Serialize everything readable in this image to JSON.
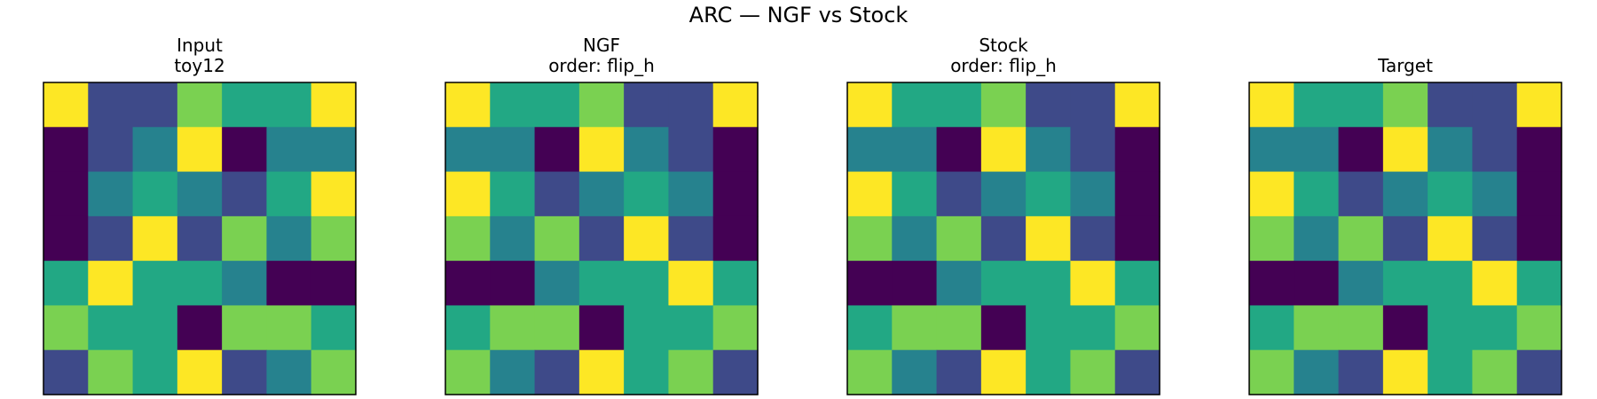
{
  "figure": {
    "title": "ARC — NGF vs Stock"
  },
  "palette": {
    "0": "#440154",
    "1": "#3e4a89",
    "2": "#26828e",
    "3": "#22a884",
    "4": "#7ad151",
    "5": "#fde725"
  },
  "chart_data": [
    {
      "type": "heatmap",
      "title": [
        "Input",
        "toy12"
      ],
      "grid": [
        [
          5,
          1,
          1,
          4,
          3,
          3,
          5
        ],
        [
          0,
          1,
          2,
          5,
          0,
          2,
          2
        ],
        [
          0,
          2,
          3,
          2,
          1,
          3,
          5
        ],
        [
          0,
          1,
          5,
          1,
          4,
          2,
          4
        ],
        [
          3,
          5,
          3,
          3,
          2,
          0,
          0
        ],
        [
          4,
          3,
          3,
          0,
          4,
          4,
          3
        ],
        [
          1,
          4,
          3,
          5,
          1,
          2,
          4
        ]
      ]
    },
    {
      "type": "heatmap",
      "title": [
        "NGF",
        "order: flip_h"
      ],
      "grid": [
        [
          5,
          3,
          3,
          4,
          1,
          1,
          5
        ],
        [
          2,
          2,
          0,
          5,
          2,
          1,
          0
        ],
        [
          5,
          3,
          1,
          2,
          3,
          2,
          0
        ],
        [
          4,
          2,
          4,
          1,
          5,
          1,
          0
        ],
        [
          0,
          0,
          2,
          3,
          3,
          5,
          3
        ],
        [
          3,
          4,
          4,
          0,
          3,
          3,
          4
        ],
        [
          4,
          2,
          1,
          5,
          3,
          4,
          1
        ]
      ]
    },
    {
      "type": "heatmap",
      "title": [
        "Stock",
        "order: flip_h"
      ],
      "grid": [
        [
          5,
          3,
          3,
          4,
          1,
          1,
          5
        ],
        [
          2,
          2,
          0,
          5,
          2,
          1,
          0
        ],
        [
          5,
          3,
          1,
          2,
          3,
          2,
          0
        ],
        [
          4,
          2,
          4,
          1,
          5,
          1,
          0
        ],
        [
          0,
          0,
          2,
          3,
          3,
          5,
          3
        ],
        [
          3,
          4,
          4,
          0,
          3,
          3,
          4
        ],
        [
          4,
          2,
          1,
          5,
          3,
          4,
          1
        ]
      ]
    },
    {
      "type": "heatmap",
      "title": [
        "",
        "Target"
      ],
      "grid": [
        [
          5,
          3,
          3,
          4,
          1,
          1,
          5
        ],
        [
          2,
          2,
          0,
          5,
          2,
          1,
          0
        ],
        [
          5,
          3,
          1,
          2,
          3,
          2,
          0
        ],
        [
          4,
          2,
          4,
          1,
          5,
          1,
          0
        ],
        [
          0,
          0,
          2,
          3,
          3,
          5,
          3
        ],
        [
          3,
          4,
          4,
          0,
          3,
          3,
          4
        ],
        [
          4,
          2,
          1,
          5,
          3,
          4,
          1
        ]
      ]
    }
  ]
}
